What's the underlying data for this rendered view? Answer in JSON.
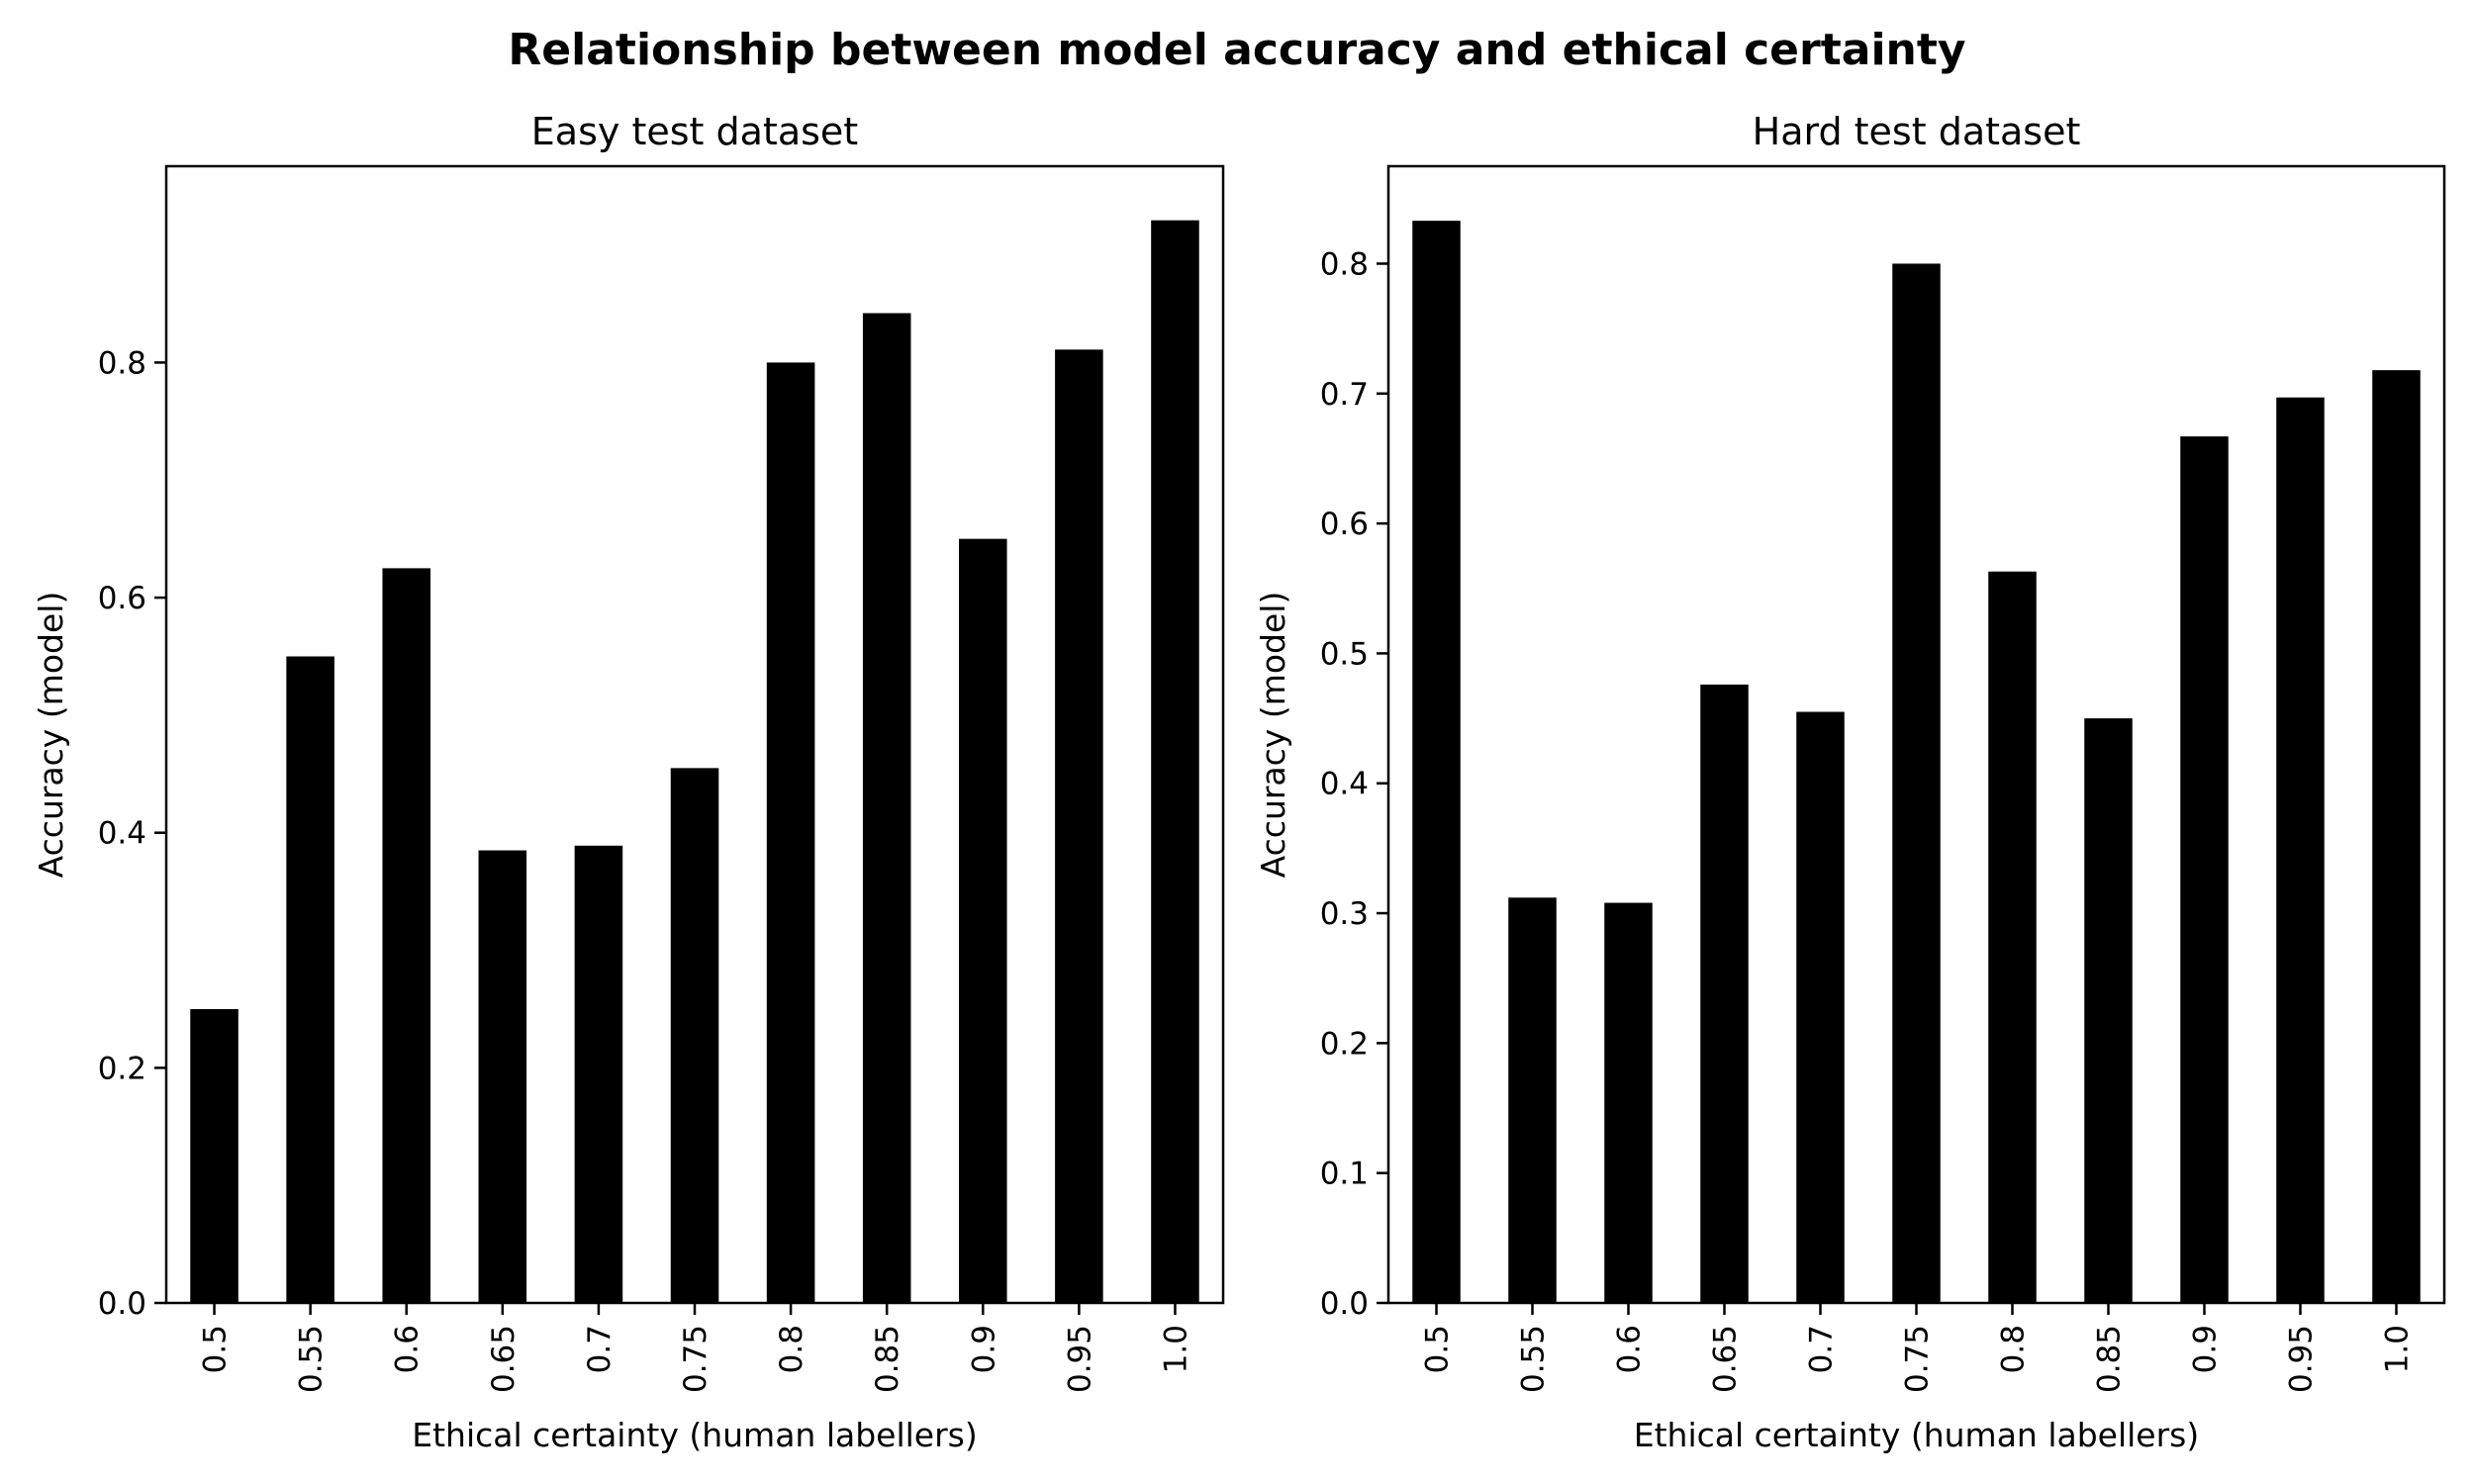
{
  "chart_data": {
    "title": "Relationship between model accuracy and ethical certainty",
    "panels": [
      {
        "type": "bar",
        "title": "Easy test dataset",
        "xlabel": "Ethical certainty (human labellers)",
        "ylabel": "Accuracy (model)",
        "categories": [
          "0.5",
          "0.55",
          "0.6",
          "0.65",
          "0.7",
          "0.75",
          "0.8",
          "0.85",
          "0.9",
          "0.95",
          "1.0"
        ],
        "values": [
          0.25,
          0.55,
          0.625,
          0.385,
          0.389,
          0.455,
          0.8,
          0.842,
          0.65,
          0.811,
          0.921
        ],
        "ylim": [
          0,
          0.967
        ],
        "yticks": [
          "0.0",
          "0.2",
          "0.4",
          "0.6",
          "0.8"
        ],
        "grid": false,
        "bar_color": "#000000"
      },
      {
        "type": "bar",
        "title": "Hard test dataset",
        "xlabel": "Ethical certainty (human labellers)",
        "ylabel": "Accuracy (model)",
        "categories": [
          "0.5",
          "0.55",
          "0.6",
          "0.65",
          "0.7",
          "0.75",
          "0.8",
          "0.85",
          "0.9",
          "0.95",
          "1.0"
        ],
        "values": [
          0.833,
          0.312,
          0.308,
          0.476,
          0.455,
          0.8,
          0.563,
          0.45,
          0.667,
          0.697,
          0.718
        ],
        "ylim": [
          0,
          0.875
        ],
        "yticks": [
          "0.0",
          "0.1",
          "0.2",
          "0.3",
          "0.4",
          "0.5",
          "0.6",
          "0.7",
          "0.8"
        ],
        "grid": false,
        "bar_color": "#000000"
      }
    ]
  }
}
